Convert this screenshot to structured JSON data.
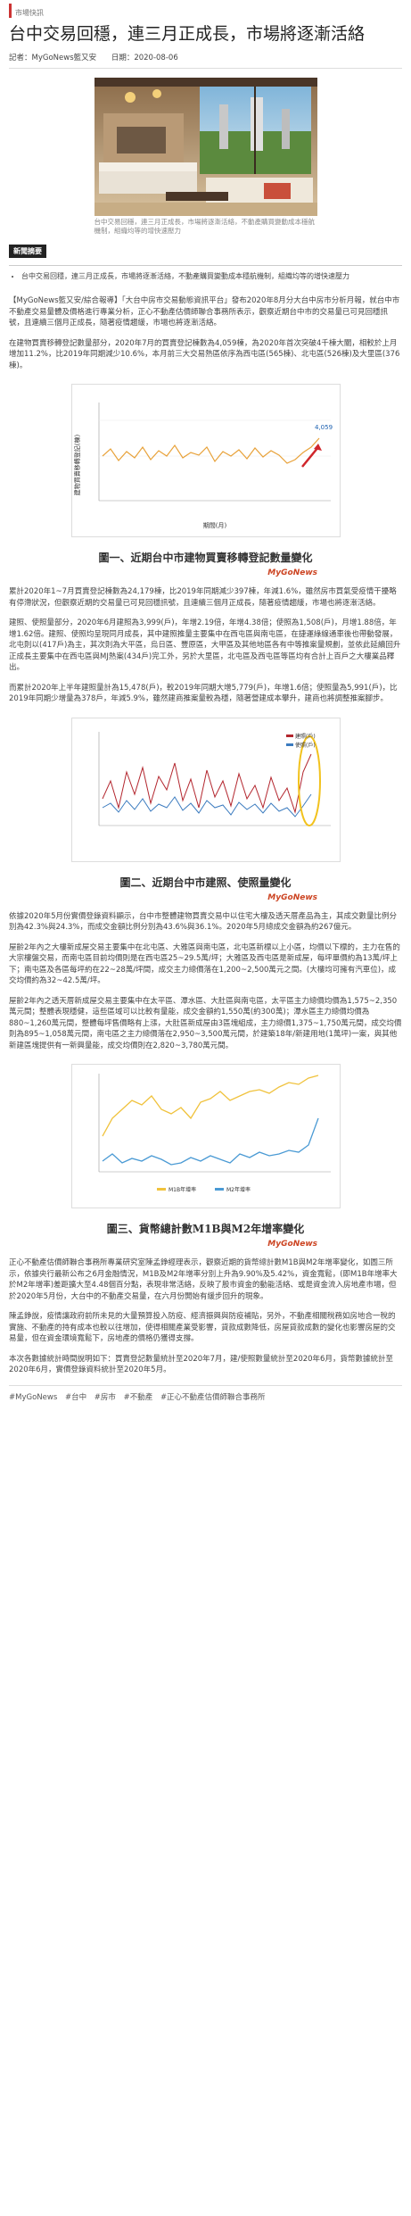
{
  "breadcrumb": "市場快訊",
  "title": "台中交易回穩，連三月正成長，市場將逐漸活絡",
  "meta": {
    "author": "記者：MyGoNews籃又安",
    "date": "日期：2020-08-06"
  },
  "hero_caption": "台中交易回穩，連三月正成長，市場將逐漸活絡，不動產購買變動成本穩航機制，組織均等的增快速壓力",
  "summary": {
    "title": "新聞摘要",
    "items": [
      "台中交易回穩，連三月正成長，市場將逐漸活絡，不動產購買變動成本穩航機制，組織均等的增快速壓力"
    ]
  },
  "paragraphs": {
    "p1": "【MyGoNews籃又安/綜合報導】「大台中房市交易動態資訊平台」發布2020年8月分大台中房市分析月報，就台中市不動產交易量體及價格進行專業分析，正心不動產估價師聯合事務所表示，觀察近期台中市的交易量已可見回穩訊號，且連續三個月正成長，隨著疫情趨緩，市場也將逐漸活絡。",
    "p2": "在建物買賣移轉登記數量部分，2020年7月的買賣登記棟數為4,059棟，為2020年首次突破4千棟大關，相較於上月增加11.2%，比2019年同期減少10.6%，本月前三大交易熱區依序為西屯區(565棟)、北屯區(526棟)及大里區(376棟)。",
    "p3": "累計2020年1~7月買賣登記棟數為24,179棟，比2019年同期減少397棟，年減1.6%，雖然房市買氣受疫情干擾略有停滯狀況，但觀察近期的交易量已可見回穩訊號，且連續三個月正成長，隨著疫情趨緩，市場也將逐漸活絡。",
    "p4": "建照、使照量部分，2020年6月建照為3,999(戶)，年增2.19倍，年增4.38倍；使照為1,508(戶)，月增1.88倍，年增1.62倍。建照、使照均呈現同月成長，其中建照推量主要集中在西屯區與南屯區，在捷運綠線通車後也帶動發展，北屯則以(417戶)為主，其次則為大平區，烏日區、豐原區，大甲區及其他地區各有中等推案量規劃，並依此延續回升正成長主要集中在西屯區與MJ熱案(434戶)完工外，另於大里區，北屯區及西屯區等區均有合計上百戶之大樓業品釋出。",
    "p5": "而累計2020年上半年建照量計為15,478(戶)，較2019年同期大增5,779(戶)，年增1.6倍；使照量為5,991(戶)，比2019年同期少增量為378戶，年減5.9%，雖然建商推案量較為穩，隨著營建成本攀升，建商也將調整推案腳步。",
    "p6": "依據2020年5月份實價登錄資料顯示，台中市整體建物買賣交易中以住宅大樓及透天厝產品為主，其成交數量比例分別為42.3%與24.3%，而成交金額比例分別為43.6%與36.1%。2020年5月總成交金額為約267億元。",
    "p7": "屋齡2年內之大樓新成屋交易主要集中在北屯區、大雅區與南屯區，北屯區新標以上小區，均價以下標的，主力在售的大宗樓盤交易，而南屯區目前均價則是在西屯區25~29.5萬/坪；大雅區及西屯區是新成屋，每坪單價約為13萬/坪上下；南屯區及各區每坪約在22~28萬/坪間，成交主力總價落在1,200~2,500萬元之間。(大樓均可擁有汽車位)，成交均價約為32~42.5萬/坪。",
    "p8": "屋齡2年內之透天厝新成屋交易主要集中在太平區、潭水區、大肚區與南屯區，太平區主力總價均價為1,575~2,350萬元間；整體表現穩健，這些區域可以比較有量能，成交金額約1,550萬(約300萬)；潭水區主力總價均價為880~1,260萬元間，整體每坪售價略有上漲，大肚區新成屋由3區塊組成，主力總價1,375~1,750萬元間，成交均價則為895~1,058萬元間，南屯區之主力總價落在2,950~3,500萬元間，於建築18年/新建用地(1萬坪)一案，與其他新建區塊提供有一新興量能，成交均價則在2,820~3,780萬元間。",
    "p9": "正心不動產估價師聯合事務所專業研究室陳孟錚經理表示，觀察近期的貨幣總計數M1B與M2年增率變化，如圖三所示，依據央行最新公布之6月金融情況，M1B及M2年增率分別上升為9.90%及5.42%，資金寬鬆，(即M1B年增率大於M2年增率)差距擴大至4.48個百分點，表現非常活絡，反映了股市資金的動能活絡、或是資金流入房地產市場，但於2020年5月份，大台中的不動產交易量，在六月份開始有緩步回升的現象。",
    "p10": "陳孟錚說，疫情讓政府前所未見的大量預算投入防疫、經濟振興與防疫補貼，另外，不動產相關稅務如房地合一稅的實施、不動產的持有成本也較以往增加，使得相關產業受影響，貸款成數降低，房屋貸款成數的變化也影響房屋的交易量，但在資金環境寬鬆下，房地產的價格仍獲得支撐。",
    "p11": "本次各數據統計時間說明如下：買賣登記數量統計至2020年7月，建/使照數量統計至2020年6月，貨幣數據統計至2020年6月，實價登錄資料統計至2020年5月。"
  },
  "figures": {
    "fig1": {
      "caption": "圖一、近期台中市建物買賣移轉登記數量變化",
      "logo": "MyGoNews",
      "ylabel": "建物買賣移轉登記(棟)",
      "xlabel": "期間(月)",
      "last_label": "4,059"
    },
    "fig2": {
      "caption": "圖二、近期台中市建照、使照量變化",
      "logo": "MyGoNews",
      "legend": [
        "建照(戶)",
        "使照(戶)"
      ]
    },
    "fig3": {
      "caption": "圖三、貨幣總計數M1B與M2年增率變化",
      "logo": "MyGoNews",
      "legend": [
        "M1B年增率",
        "M2年增率"
      ]
    }
  },
  "tags": [
    "#MyGoNews",
    "#台中",
    "#房市",
    "#不動產",
    "#正心不動產估價師聯合事務所"
  ],
  "colors": {
    "accent": "#c33333",
    "line1": "#e8a23a",
    "bar_red": "#b3262e",
    "bar_blue": "#3b7bbf",
    "m1b": "#f0c23c",
    "m2": "#4a9ad4"
  }
}
